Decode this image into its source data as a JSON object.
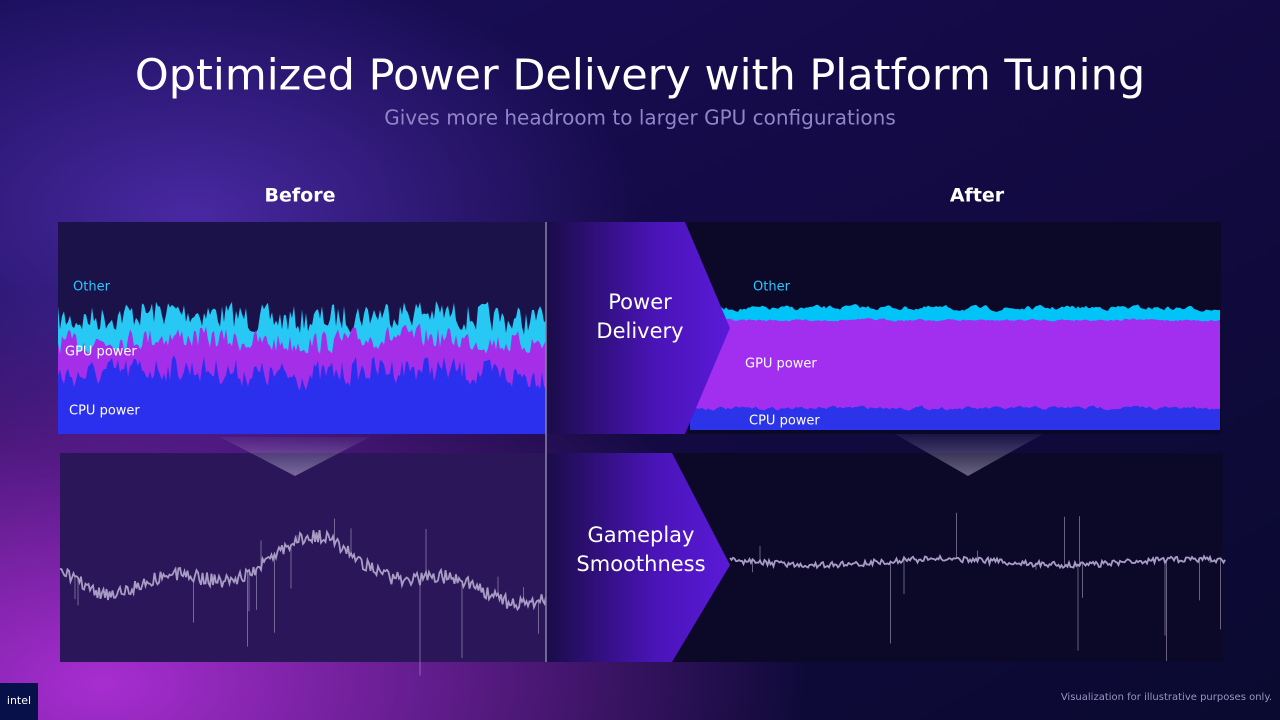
{
  "header": {
    "title": "Optimized Power Delivery with Platform Tuning",
    "subtitle": "Gives more headroom to larger GPU configurations"
  },
  "panels": [
    {
      "heading": "Before",
      "labels": [
        "Other",
        "GPU power",
        "CPU power"
      ]
    },
    {
      "heading": "After",
      "labels": [
        "Other",
        "GPU power",
        "CPU power"
      ]
    }
  ],
  "arrows": [
    {
      "lines": [
        "Power",
        "Delivery"
      ]
    },
    {
      "lines": [
        "Gameplay",
        "Smoothness"
      ]
    }
  ],
  "footer": {
    "note": "Visualization for illustrative purposes only.",
    "logo": "intel"
  }
}
